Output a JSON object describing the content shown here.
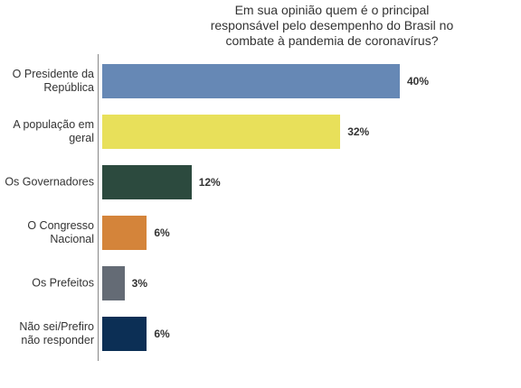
{
  "chart_data": {
    "type": "bar",
    "orientation": "horizontal",
    "title": "Em sua opinião quem é o principal responsável pelo desempenho do Brasil no combate à pandemia de coronavírus?",
    "categories": [
      "O Presidente da República",
      "A população em geral",
      "Os Governadores",
      "O Congresso Nacional",
      "Os Prefeitos",
      "Não sei/Prefiro não responder"
    ],
    "values": [
      40,
      32,
      12,
      6,
      3,
      6
    ],
    "value_labels": [
      "40%",
      "32%",
      "12%",
      "6%",
      "3%",
      "6%"
    ],
    "colors": [
      "#6688b5",
      "#e8e05a",
      "#2c4a3e",
      "#d4843a",
      "#646b75",
      "#0c2f55"
    ]
  }
}
